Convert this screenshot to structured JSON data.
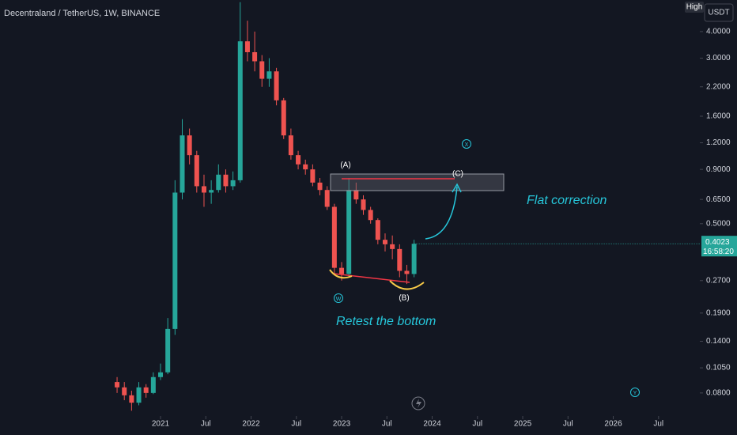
{
  "chart_data": {
    "type": "candlestick",
    "title": "Decentraland / TetherUS, 1W, BINANCE",
    "badge": "High",
    "currency": "USDT",
    "x": [
      2020.52,
      2020.6,
      2020.68,
      2020.76,
      2020.84,
      2020.92,
      2021.0,
      2021.08,
      2021.16,
      2021.24,
      2021.32,
      2021.4,
      2021.48,
      2021.56,
      2021.64,
      2021.72,
      2021.8,
      2021.88,
      2021.96,
      2022.04,
      2022.12,
      2022.2,
      2022.28,
      2022.36,
      2022.44,
      2022.52,
      2022.6,
      2022.68,
      2022.76,
      2022.84,
      2022.92,
      2023.0,
      2023.08,
      2023.16,
      2023.24,
      2023.32,
      2023.4,
      2023.48,
      2023.56,
      2023.64,
      2023.72,
      2023.8
    ],
    "open": [
      0.09,
      0.085,
      0.078,
      0.072,
      0.085,
      0.08,
      0.095,
      0.1,
      0.16,
      0.7,
      1.3,
      1.05,
      0.75,
      0.7,
      0.72,
      0.85,
      0.75,
      0.8,
      3.6,
      3.2,
      2.9,
      2.4,
      2.6,
      1.9,
      1.3,
      1.05,
      0.95,
      0.9,
      0.78,
      0.72,
      0.6,
      0.31,
      0.29,
      0.72,
      0.65,
      0.58,
      0.52,
      0.42,
      0.4,
      0.38,
      0.3,
      0.29
    ],
    "high": [
      0.095,
      0.09,
      0.082,
      0.09,
      0.088,
      0.1,
      0.11,
      0.18,
      0.8,
      1.55,
      1.4,
      1.1,
      0.85,
      0.8,
      0.95,
      0.9,
      0.88,
      5.5,
      4.5,
      4.0,
      3.1,
      3.0,
      2.7,
      1.95,
      1.4,
      1.1,
      1.0,
      0.95,
      0.82,
      0.75,
      0.62,
      0.33,
      0.82,
      0.78,
      0.68,
      0.6,
      0.53,
      0.45,
      0.44,
      0.4,
      0.32,
      0.42
    ],
    "low": [
      0.08,
      0.074,
      0.066,
      0.07,
      0.076,
      0.079,
      0.092,
      0.098,
      0.15,
      0.65,
      0.95,
      0.7,
      0.6,
      0.62,
      0.7,
      0.7,
      0.72,
      0.78,
      2.9,
      2.6,
      2.2,
      2.2,
      1.8,
      1.25,
      1.0,
      0.9,
      0.85,
      0.75,
      0.68,
      0.58,
      0.29,
      0.27,
      0.28,
      0.62,
      0.55,
      0.5,
      0.4,
      0.37,
      0.34,
      0.28,
      0.26,
      0.28
    ],
    "close": [
      0.085,
      0.078,
      0.072,
      0.085,
      0.08,
      0.095,
      0.1,
      0.16,
      0.7,
      1.3,
      1.05,
      0.75,
      0.7,
      0.72,
      0.85,
      0.75,
      0.8,
      3.6,
      3.2,
      2.9,
      2.4,
      2.6,
      1.9,
      1.3,
      1.05,
      0.95,
      0.9,
      0.78,
      0.72,
      0.6,
      0.31,
      0.29,
      0.72,
      0.65,
      0.58,
      0.52,
      0.42,
      0.4,
      0.38,
      0.3,
      0.29,
      0.4023
    ],
    "up_color": "#26a69a",
    "down_color": "#ef5350",
    "log_scale": true,
    "ylim": [
      0.0645,
      5.63
    ],
    "yticks": [
      {
        "value": 4,
        "label": "4.0000"
      },
      {
        "value": 3,
        "label": "3.0000"
      },
      {
        "value": 2.2,
        "label": "2.2000"
      },
      {
        "value": 1.6,
        "label": "1.6000"
      },
      {
        "value": 1.2,
        "label": "1.2000"
      },
      {
        "value": 0.9,
        "label": "0.9000"
      },
      {
        "value": 0.65,
        "label": "0.6500"
      },
      {
        "value": 0.5,
        "label": "0.5000"
      },
      {
        "value": 0.27,
        "label": "0.2700"
      },
      {
        "value": 0.19,
        "label": "0.1900"
      },
      {
        "value": 0.14,
        "label": "0.1400"
      },
      {
        "value": 0.105,
        "label": "0.1050"
      },
      {
        "value": 0.08,
        "label": "0.0800"
      }
    ],
    "xlim": [
      2019.227,
      2026.956
    ],
    "xticks": [
      {
        "value": 2021,
        "label": "2021"
      },
      {
        "value": 2021.5,
        "label": "Jul"
      },
      {
        "value": 2022,
        "label": "2022"
      },
      {
        "value": 2022.5,
        "label": "Jul"
      },
      {
        "value": 2023,
        "label": "2023"
      },
      {
        "value": 2023.5,
        "label": "Jul"
      },
      {
        "value": 2024,
        "label": "2024"
      },
      {
        "value": 2024.5,
        "label": "Jul"
      },
      {
        "value": 2025,
        "label": "2025"
      },
      {
        "value": 2025.5,
        "label": "Jul"
      },
      {
        "value": 2026,
        "label": "2026"
      },
      {
        "value": 2026.5,
        "label": "Jul"
      }
    ],
    "last_price": 0.4023,
    "countdown": "16:58:20",
    "annotations": {
      "a": "(A)",
      "b": "(B)",
      "c": "(C)",
      "w": "W",
      "x": "X",
      "y": "Y",
      "flat": "Flat correction",
      "retest": "Retest the bottom"
    }
  }
}
